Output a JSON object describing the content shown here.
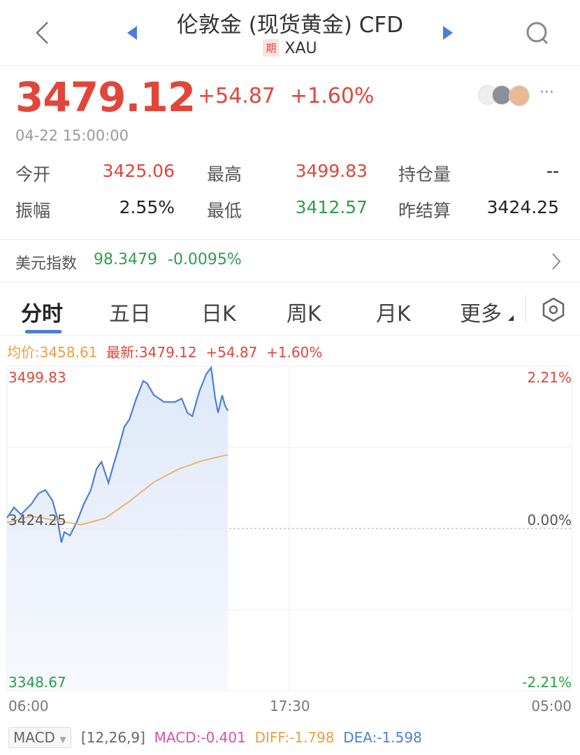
{
  "header": {
    "title": "伦敦金 (现货黄金) CFD",
    "badge": "期",
    "symbol": "XAU",
    "icons": [
      "back-icon",
      "prev-triangle-icon",
      "next-triangle-icon",
      "search-icon"
    ]
  },
  "quote": {
    "price": "3479.12",
    "change": "+54.87",
    "change_pct": "+1.60%",
    "timestamp": "04-22 15:00:00",
    "more": "···"
  },
  "stats": [
    {
      "label": "今开",
      "value": "3425.06",
      "color": "red"
    },
    {
      "label": "最高",
      "value": "3499.83",
      "color": "red"
    },
    {
      "label": "持仓量",
      "value": "--",
      "color": "dark"
    },
    {
      "label": "振幅",
      "value": "2.55%",
      "color": "dark"
    },
    {
      "label": "最低",
      "value": "3412.57",
      "color": "green"
    },
    {
      "label": "昨结算",
      "value": "3424.25",
      "color": "dark"
    }
  ],
  "dxy": {
    "label": "美元指数",
    "value": "98.3479",
    "change": "-0.0095%"
  },
  "tabs": [
    {
      "label": "分时",
      "active": true
    },
    {
      "label": "五日"
    },
    {
      "label": "日K"
    },
    {
      "label": "周K"
    },
    {
      "label": "月K"
    },
    {
      "label": "更多"
    }
  ],
  "legend": {
    "avg": "均价:3458.61",
    "latest": "最新:3479.12",
    "change": "+54.87",
    "pct": "+1.60%"
  },
  "colors": {
    "up": "#e0463a",
    "down": "#2e9e4a",
    "price_line": "#4a7fdc",
    "avg_line": "#e8b060",
    "accent": "#4a7fdc"
  },
  "chart_data": {
    "type": "line",
    "x_ticks": [
      "06:00",
      "17:30",
      "05:00"
    ],
    "y_left_ticks": [
      "3499.83",
      "3424.25",
      "3348.67"
    ],
    "y_right_ticks": [
      "2.21%",
      "0.00%",
      "-2.21%"
    ],
    "ylim": [
      3348.67,
      3499.83
    ],
    "baseline": 3424.25,
    "xlim": [
      "06:00",
      "05:00"
    ],
    "series": [
      {
        "x": [
          "06:00",
          "06:17",
          "06:34",
          "07:00",
          "07:17",
          "07:34",
          "07:51",
          "08:03",
          "08:13",
          "08:20",
          "08:34",
          "08:51",
          "09:08",
          "09:25",
          "09:39",
          "09:51",
          "10:08",
          "10:20",
          "10:33",
          "10:47",
          "10:59",
          "11:16",
          "11:33",
          "11:42",
          "11:59",
          "12:24",
          "12:50",
          "13:07",
          "13:21",
          "13:33",
          "13:50",
          "14:07",
          "14:19",
          "14:29",
          "14:36",
          "14:46",
          "14:53",
          "15:00"
        ],
        "values": [
          3429.2,
          3434.1,
          3430.8,
          3435.7,
          3440.6,
          3442.2,
          3437.3,
          3429.2,
          3417.7,
          3422.6,
          3421.0,
          3427.5,
          3435.7,
          3442.2,
          3452.1,
          3455.3,
          3445.5,
          3453.7,
          3461.9,
          3471.7,
          3475.0,
          3484.8,
          3493.0,
          3492.0,
          3486.4,
          3483.2,
          3483.2,
          3484.8,
          3478.2,
          3476.6,
          3488.1,
          3496.2,
          3499.2,
          3484.8,
          3478.2,
          3486.4,
          3481.5,
          3479.12
        ]
      },
      {
        "x": [
          "06:00",
          "07:00",
          "08:00",
          "09:00",
          "10:00",
          "11:00",
          "12:00",
          "13:00",
          "14:00",
          "15:00"
        ],
        "values": [
          3427,
          3430,
          3428,
          3426,
          3429,
          3437,
          3446,
          3452,
          3456,
          3458.61
        ]
      }
    ]
  },
  "macd": {
    "selector": "MACD",
    "params": "[12,26,9]",
    "macd": "MACD:-0.401",
    "diff": "DIFF:-1.798",
    "dea": "DEA:-1.598"
  }
}
